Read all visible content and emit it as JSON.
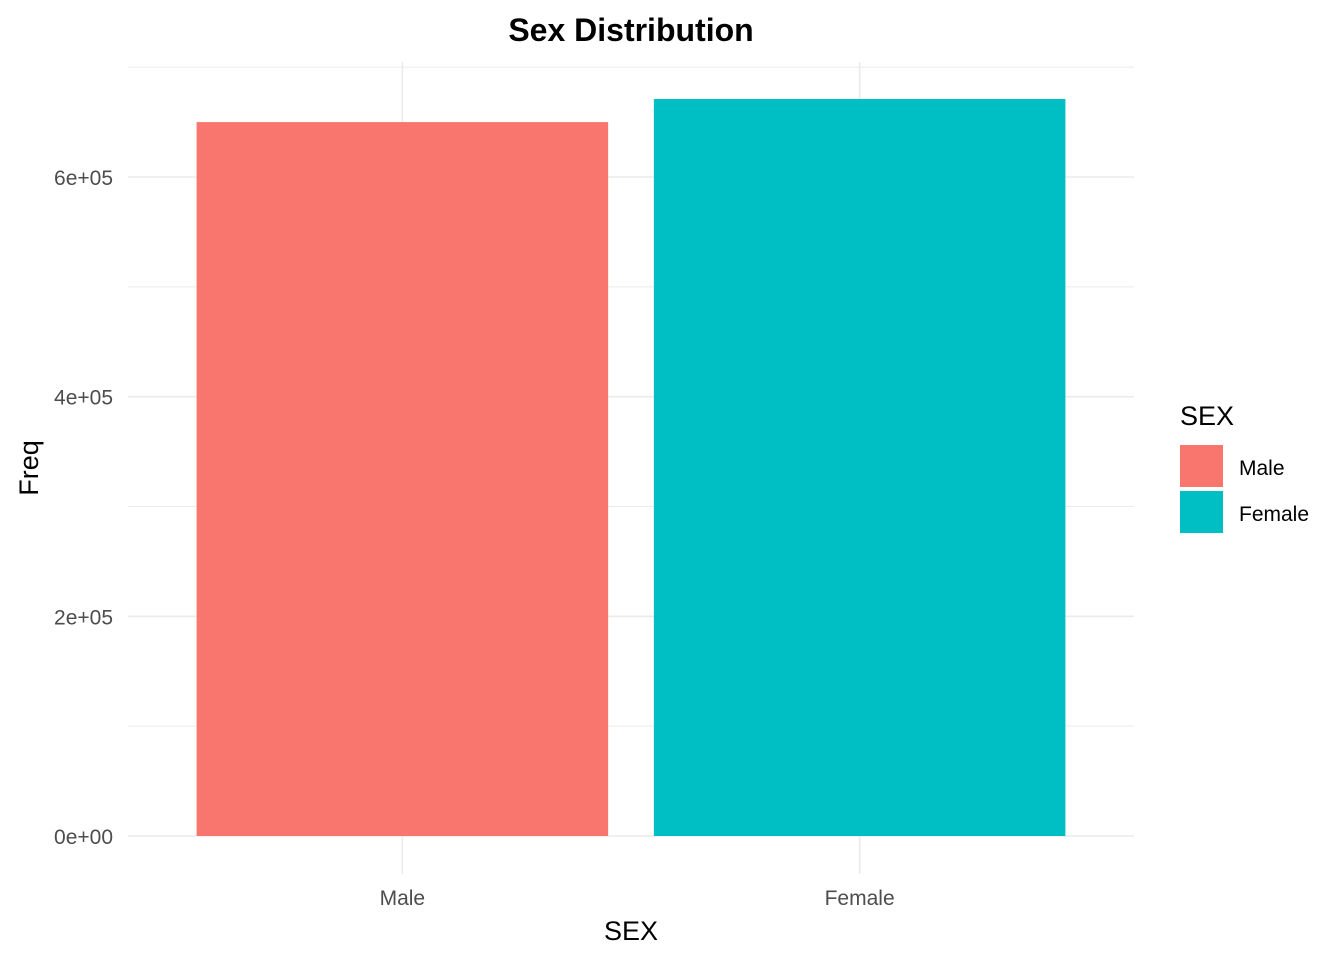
{
  "chart_data": {
    "type": "bar",
    "title": "Sex Distribution",
    "xlabel": "SEX",
    "ylabel": "Freq",
    "categories": [
      "Male",
      "Female"
    ],
    "values": [
      650000,
      671000
    ],
    "colors": [
      "#F8766D",
      "#00BFC4"
    ],
    "ylim": [
      0,
      700000
    ],
    "y_ticks": [
      0,
      200000,
      400000,
      600000
    ],
    "y_tick_labels": [
      "0e+00",
      "2e+05",
      "4e+05",
      "6e+05"
    ],
    "y_minor_ticks": [
      100000,
      300000,
      500000,
      700000
    ],
    "grid": true,
    "legend": {
      "title": "SEX",
      "position": "right",
      "entries": [
        "Male",
        "Female"
      ]
    }
  }
}
